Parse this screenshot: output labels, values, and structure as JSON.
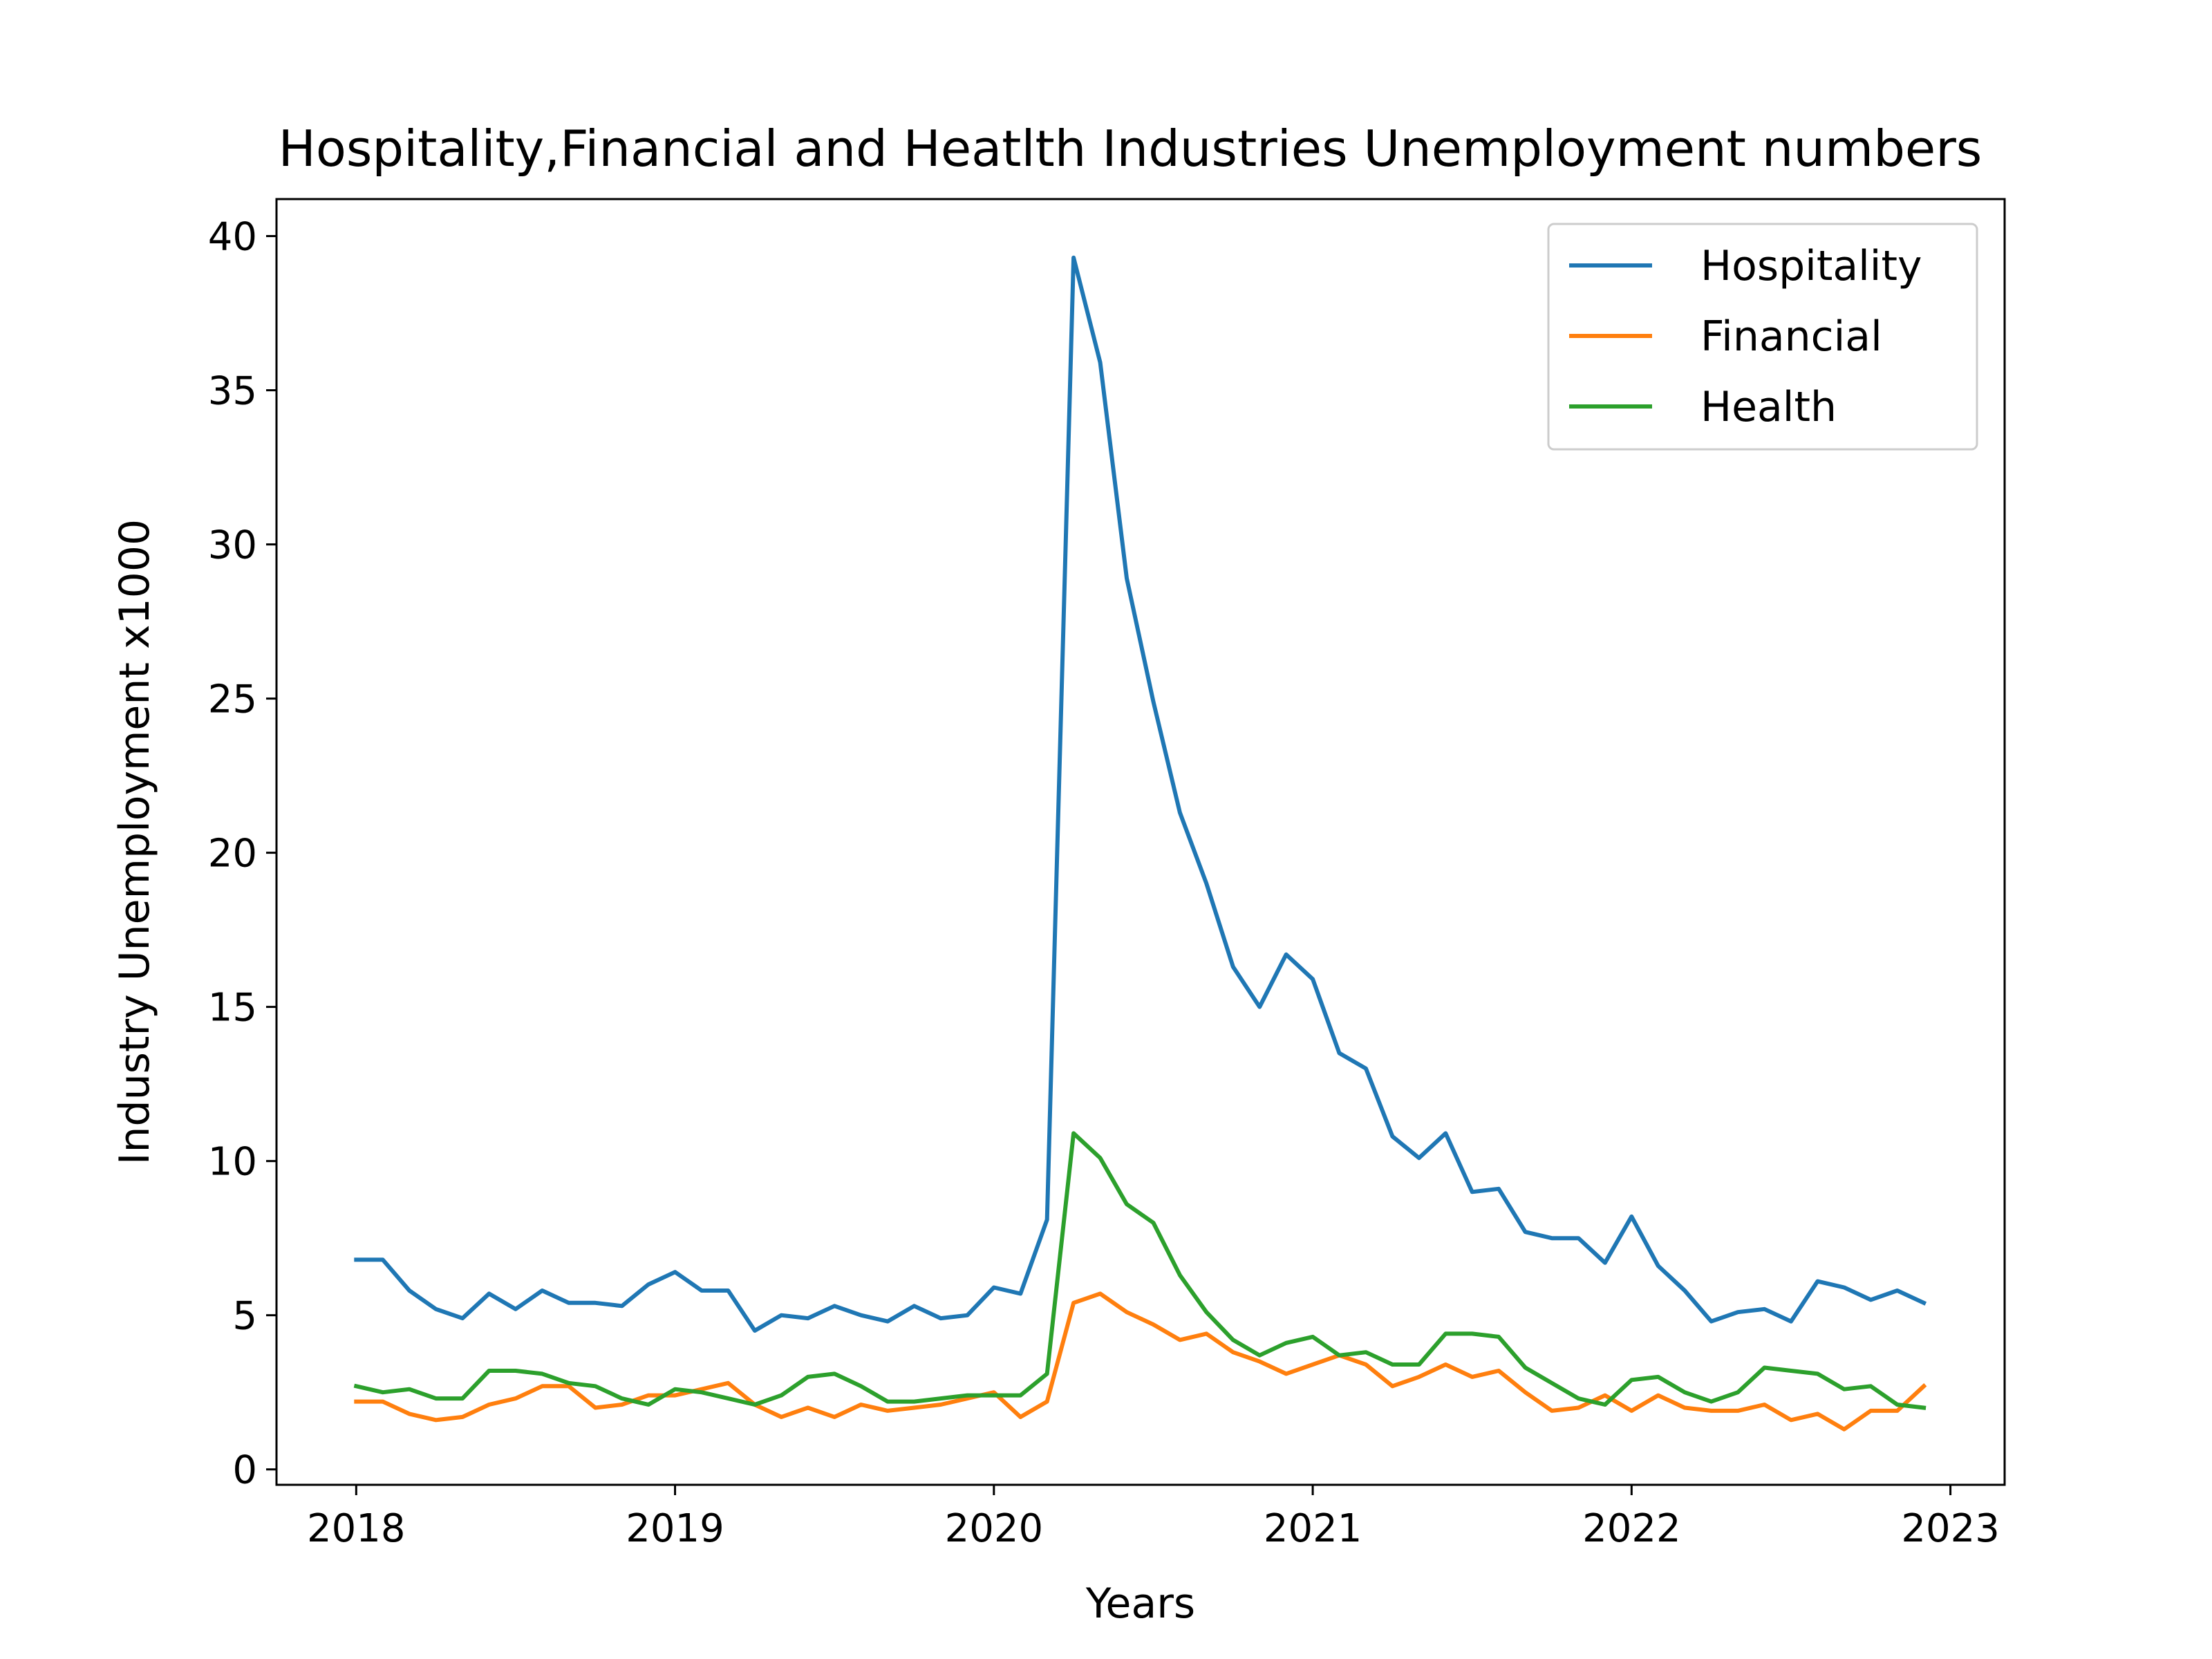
{
  "chart_data": {
    "type": "line",
    "title": "Hospitality,Financial and Heatlth Industries Unemployment numbers",
    "xlabel": "Years",
    "ylabel": "Industry Unemployment x1000",
    "xlim": [
      2017.75,
      2023.17
    ],
    "ylim": [
      -0.5,
      41.2
    ],
    "xticks": [
      "2018",
      "2019",
      "2020",
      "2021",
      "2022",
      "2023"
    ],
    "yticks": [
      "0",
      "5",
      "10",
      "15",
      "20",
      "25",
      "30",
      "35",
      "40"
    ],
    "grid": false,
    "legend_position": "top-right",
    "x_start_year": 2018,
    "x_step_months": 1,
    "series": [
      {
        "name": "Hospitality",
        "color": "#1f77b4",
        "values": [
          6.8,
          6.8,
          5.8,
          5.2,
          4.9,
          5.7,
          5.2,
          5.8,
          5.4,
          5.4,
          5.3,
          6.0,
          6.4,
          5.8,
          5.8,
          4.5,
          5.0,
          4.9,
          5.3,
          5.0,
          4.8,
          5.3,
          4.9,
          5.0,
          5.9,
          5.7,
          8.1,
          39.3,
          35.9,
          28.9,
          24.9,
          21.3,
          19.0,
          16.3,
          15.0,
          16.7,
          15.9,
          13.5,
          13.0,
          10.8,
          10.1,
          10.9,
          9.0,
          9.1,
          7.7,
          7.5,
          7.5,
          6.7,
          8.2,
          6.6,
          5.8,
          4.8,
          5.1,
          5.2,
          4.8,
          6.1,
          5.9,
          5.5,
          5.8,
          5.4
        ]
      },
      {
        "name": "Financial",
        "color": "#ff7f0e",
        "values": [
          2.2,
          2.2,
          1.8,
          1.6,
          1.7,
          2.1,
          2.3,
          2.7,
          2.7,
          2.0,
          2.1,
          2.4,
          2.4,
          2.6,
          2.8,
          2.1,
          1.7,
          2.0,
          1.7,
          2.1,
          1.9,
          2.0,
          2.1,
          2.3,
          2.5,
          1.7,
          2.2,
          5.4,
          5.7,
          5.1,
          4.7,
          4.2,
          4.4,
          3.8,
          3.5,
          3.1,
          3.4,
          3.7,
          3.4,
          2.7,
          3.0,
          3.4,
          3.0,
          3.2,
          2.5,
          1.9,
          2.0,
          2.4,
          1.9,
          2.4,
          2.0,
          1.9,
          1.9,
          2.1,
          1.6,
          1.8,
          1.3,
          1.9,
          1.9,
          2.7
        ]
      },
      {
        "name": "Health",
        "color": "#2ca02c",
        "values": [
          2.7,
          2.5,
          2.6,
          2.3,
          2.3,
          3.2,
          3.2,
          3.1,
          2.8,
          2.7,
          2.3,
          2.1,
          2.6,
          2.5,
          2.3,
          2.1,
          2.4,
          3.0,
          3.1,
          2.7,
          2.2,
          2.2,
          2.3,
          2.4,
          2.4,
          2.4,
          3.1,
          10.9,
          10.1,
          8.6,
          8.0,
          6.3,
          5.1,
          4.2,
          3.7,
          4.1,
          4.3,
          3.7,
          3.8,
          3.4,
          3.4,
          4.4,
          4.4,
          4.3,
          3.3,
          2.8,
          2.3,
          2.1,
          2.9,
          3.0,
          2.5,
          2.2,
          2.5,
          3.3,
          3.2,
          3.1,
          2.6,
          2.7,
          2.1,
          2.0
        ]
      }
    ]
  }
}
